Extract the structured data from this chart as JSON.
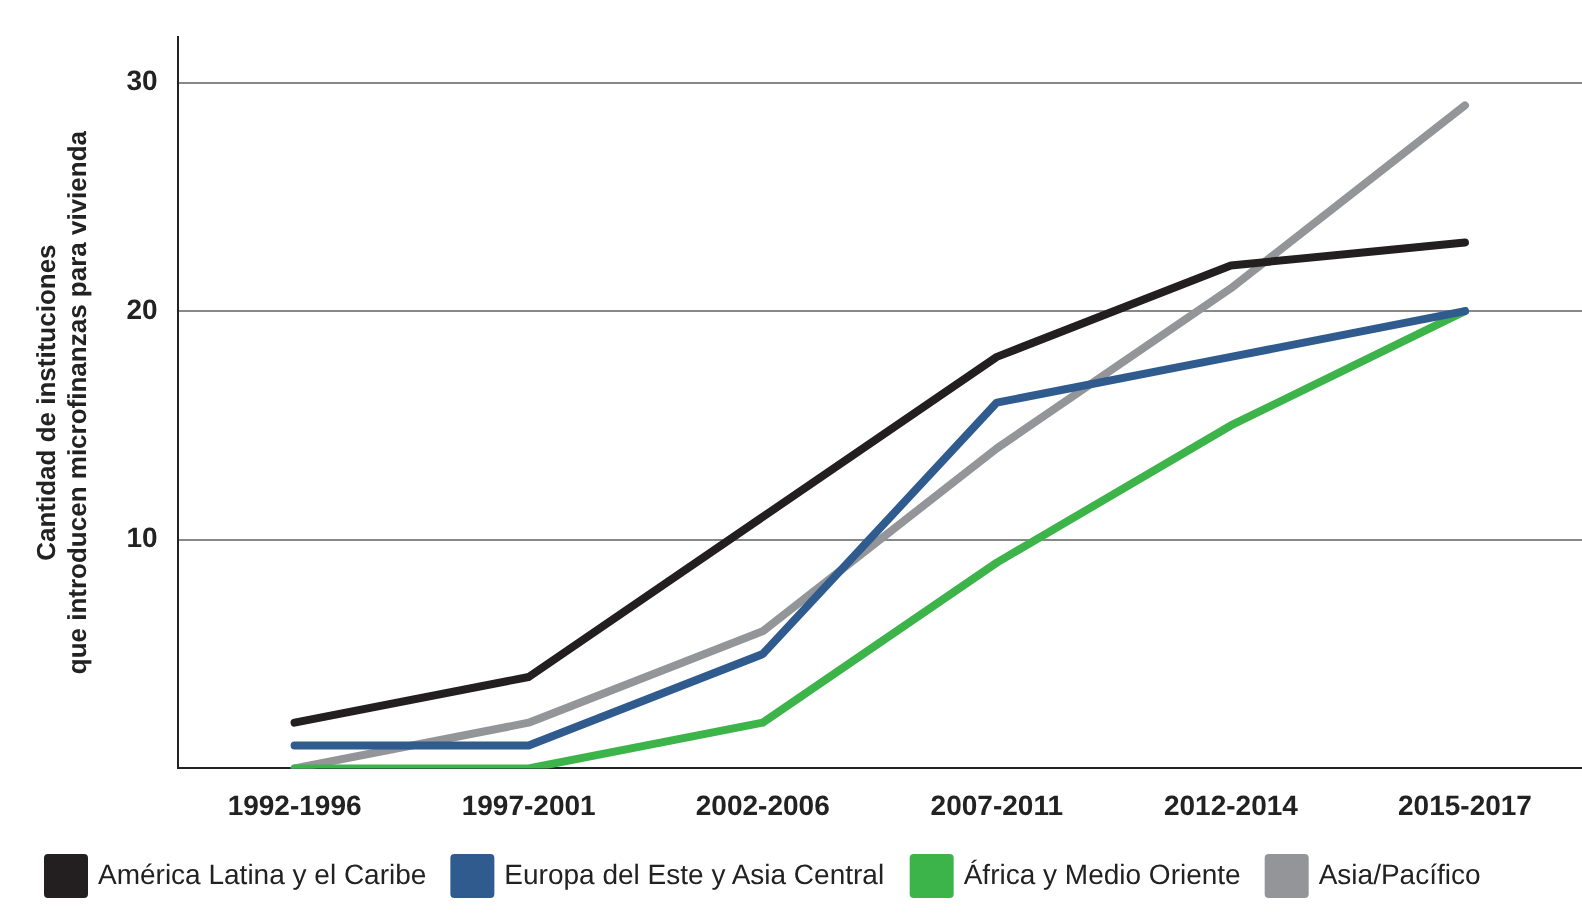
{
  "chart_data": {
    "type": "line",
    "ylabel": "Cantidad de instituciones\nque introducen microfinanzas para vivienda",
    "categories": [
      "1992-1996",
      "1997-2001",
      "2002-2006",
      "2007-2011",
      "2012-2014",
      "2015-2017"
    ],
    "series": [
      {
        "name": "América Latina y el Caribe",
        "color": "#231f20",
        "values": [
          2,
          4,
          11,
          18,
          22,
          23
        ]
      },
      {
        "name": "Europa del Este y Asia Central",
        "color": "#2f5b8f",
        "values": [
          1,
          1,
          5,
          16,
          18,
          20
        ]
      },
      {
        "name": "África y Medio Oriente",
        "color": "#3cb44a",
        "values": [
          0,
          0,
          2,
          9,
          15,
          20
        ]
      },
      {
        "name": "Asia/Pacífico",
        "color": "#939598",
        "values": [
          0,
          2,
          6,
          14,
          21,
          29
        ]
      }
    ],
    "ylim": [
      0,
      32
    ],
    "yticks": [
      {
        "value": 0,
        "label": null
      },
      10,
      20,
      30
    ],
    "grid": "y",
    "legend": "bottom",
    "marker": "none",
    "line_style": "solid"
  }
}
